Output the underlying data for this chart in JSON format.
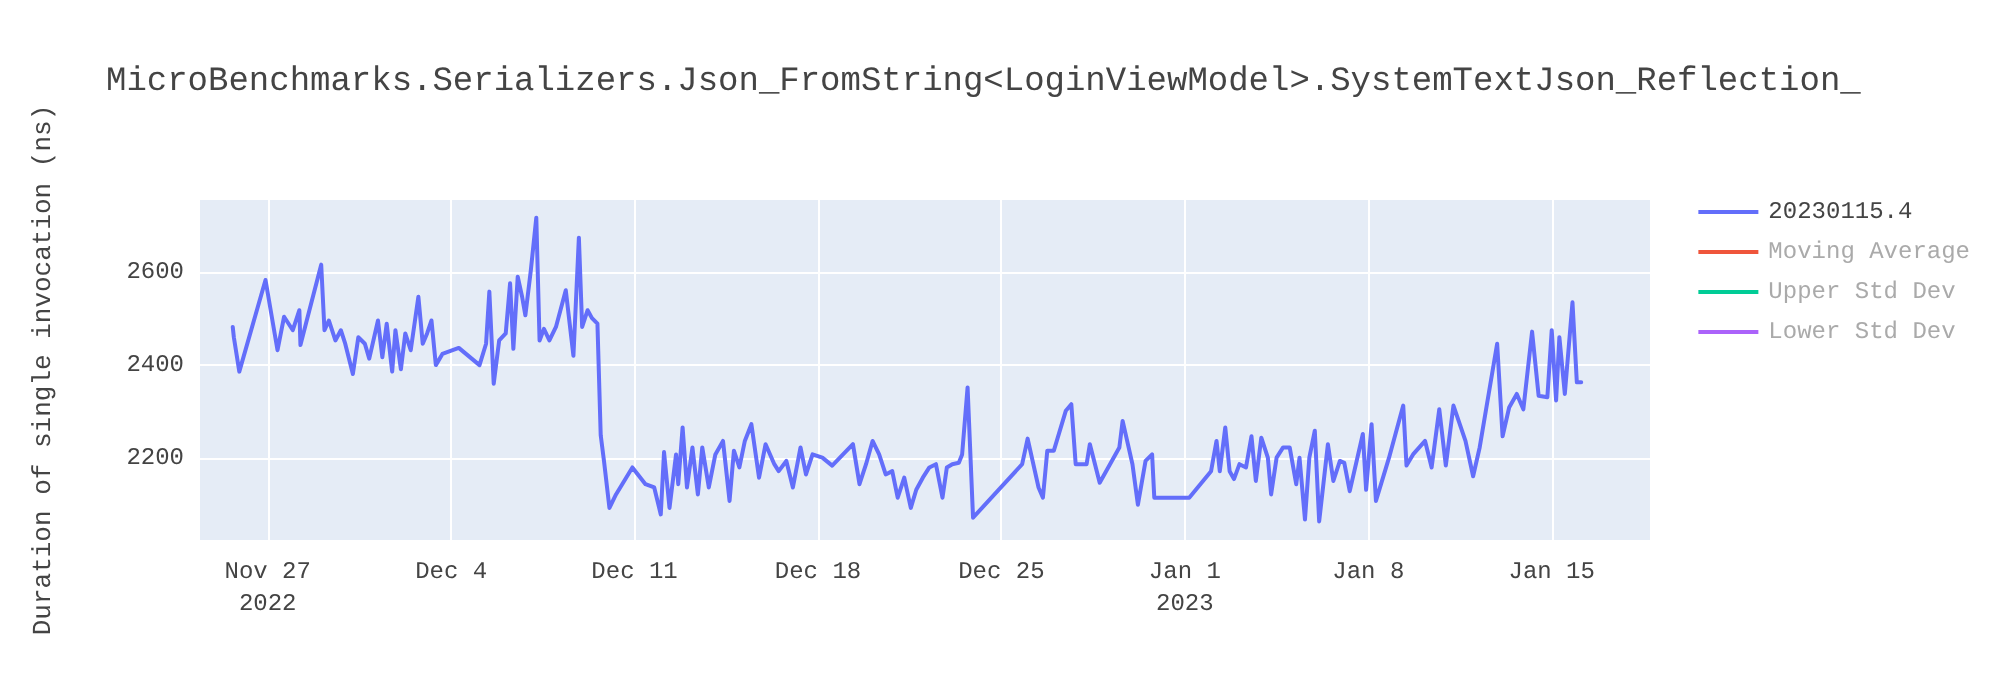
{
  "chart_data": {
    "type": "line",
    "title": "MicroBenchmarks.Serializers.Json_FromString<LoginViewModel>.SystemTextJson_Reflection_",
    "ylabel": "Duration of single invocation (ns)",
    "xlim": [
      "2022-11-24T10:00",
      "2023-01-18T18:00"
    ],
    "xticks": [
      {
        "value": "2022-11-27",
        "label": "Nov 27\n2022"
      },
      {
        "value": "2022-12-04",
        "label": "Dec 4"
      },
      {
        "value": "2022-12-11",
        "label": "Dec 11"
      },
      {
        "value": "2022-12-18",
        "label": "Dec 18"
      },
      {
        "value": "2022-12-25",
        "label": "Dec 25"
      },
      {
        "value": "2023-01-01",
        "label": "Jan 1\n2023"
      },
      {
        "value": "2023-01-08",
        "label": "Jan 8"
      },
      {
        "value": "2023-01-15",
        "label": "Jan 15"
      }
    ],
    "ylim": [
      2024,
      2755
    ],
    "yticks": [
      2200,
      2400,
      2600
    ],
    "grid": true,
    "legend": "right",
    "marker": "none",
    "series": [
      {
        "name": "20230115.4",
        "color": "#636efa",
        "x": [
          "2022-11-25T16:00",
          "2022-11-25T17:00",
          "2022-11-25T22:00",
          "2022-11-26T22:00",
          "2022-11-27T09:00",
          "2022-11-27T15:00",
          "2022-11-27T23:00",
          "2022-11-28T05:00",
          "2022-11-28T06:00",
          "2022-11-28T11:00",
          "2022-11-29T01:00",
          "2022-11-29T04:00",
          "2022-11-29T08:00",
          "2022-11-29T14:00",
          "2022-11-29T19:00",
          "2022-11-29T23:00",
          "2022-11-30T06:00",
          "2022-11-30T11:00",
          "2022-11-30T17:00",
          "2022-11-30T21:00",
          "2022-12-01T05:00",
          "2022-12-01T09:00",
          "2022-12-01T13:00",
          "2022-12-01T18:00",
          "2022-12-01T21:00",
          "2022-12-02T02:00",
          "2022-12-02T06:00",
          "2022-12-02T11:00",
          "2022-12-02T18:00",
          "2022-12-02T22:00",
          "2022-12-03T02:00",
          "2022-12-03T06:00",
          "2022-12-03T10:00",
          "2022-12-03T16:00",
          "2022-12-04T07:00",
          "2022-12-05T02:00",
          "2022-12-05T08:00",
          "2022-12-05T11:00",
          "2022-12-05T15:00",
          "2022-12-05T20:00",
          "2022-12-06T02:00",
          "2022-12-06T06:00",
          "2022-12-06T09:00",
          "2022-12-06T13:00",
          "2022-12-06T17:00",
          "2022-12-06T20:00",
          "2022-12-07T01:00",
          "2022-12-07T06:00",
          "2022-12-07T09:00",
          "2022-12-07T13:00",
          "2022-12-07T18:00",
          "2022-12-08T00:00",
          "2022-12-08T09:00",
          "2022-12-08T16:00",
          "2022-12-08T21:00",
          "2022-12-09T00:00",
          "2022-12-09T05:00",
          "2022-12-09T09:00",
          "2022-12-09T14:00",
          "2022-12-09T17:00",
          "2022-12-09T20:00",
          "2022-12-10T01:00",
          "2022-12-10T07:00",
          "2022-12-10T22:00",
          "2022-12-11T10:00",
          "2022-12-11T18:00",
          "2022-12-12T00:00",
          "2022-12-12T03:00",
          "2022-12-12T08:00",
          "2022-12-12T14:00",
          "2022-12-12T16:00",
          "2022-12-12T20:00",
          "2022-12-13T00:00",
          "2022-12-13T05:00",
          "2022-12-13T10:00",
          "2022-12-13T14:00",
          "2022-12-13T20:00",
          "2022-12-14T02:00",
          "2022-12-14T09:00",
          "2022-12-14T15:00",
          "2022-12-14T19:00",
          "2022-12-15T00:00",
          "2022-12-15T05:00",
          "2022-12-15T11:00",
          "2022-12-15T18:00",
          "2022-12-16T00:00",
          "2022-12-16T08:00",
          "2022-12-16T12:00",
          "2022-12-16T19:00",
          "2022-12-17T01:00",
          "2022-12-17T08:00",
          "2022-12-17T13:00",
          "2022-12-17T19:00",
          "2022-12-18T04:00",
          "2022-12-18T13:00",
          "2022-12-19T08:00",
          "2022-12-19T14:00",
          "2022-12-19T20:00",
          "2022-12-20T02:00",
          "2022-12-20T08:00",
          "2022-12-20T14:00",
          "2022-12-20T20:00",
          "2022-12-21T01:00",
          "2022-12-21T07:00",
          "2022-12-21T13:00",
          "2022-12-21T18:00",
          "2022-12-22T00:00",
          "2022-12-22T06:00",
          "2022-12-22T12:00",
          "2022-12-22T18:00",
          "2022-12-22T22:00",
          "2022-12-23T03:00",
          "2022-12-23T09:00",
          "2022-12-23T12:00",
          "2022-12-23T17:00",
          "2022-12-23T22:00",
          "2022-12-25T19:00",
          "2022-12-26T00:00",
          "2022-12-26T10:00",
          "2022-12-26T14:00",
          "2022-12-26T18:00",
          "2022-12-27T00:00",
          "2022-12-27T11:00",
          "2022-12-27T16:00",
          "2022-12-27T20:00",
          "2022-12-28T06:00",
          "2022-12-28T09:00",
          "2022-12-28T18:00",
          "2022-12-29T12:00",
          "2022-12-29T15:00",
          "2022-12-30T00:00",
          "2022-12-30T05:00",
          "2022-12-30T12:00",
          "2022-12-30T18:00",
          "2022-12-30T20:00",
          "2023-01-01T04:00",
          "2023-01-02T00:00",
          "2023-01-02T05:00",
          "2023-01-02T08:00",
          "2023-01-02T13:00",
          "2023-01-02T17:00",
          "2023-01-02T21:00",
          "2023-01-03T02:00",
          "2023-01-03T08:00",
          "2023-01-03T13:00",
          "2023-01-03T17:00",
          "2023-01-03T22:00",
          "2023-01-04T04:00",
          "2023-01-04T07:00",
          "2023-01-04T12:00",
          "2023-01-04T18:00",
          "2023-01-05T00:00",
          "2023-01-05T06:00",
          "2023-01-05T09:00",
          "2023-01-05T14:00",
          "2023-01-05T18:00",
          "2023-01-05T23:00",
          "2023-01-06T03:00",
          "2023-01-06T11:00",
          "2023-01-06T16:00",
          "2023-01-06T22:00",
          "2023-01-07T02:00",
          "2023-01-07T07:00",
          "2023-01-07T19:00",
          "2023-01-07T22:00",
          "2023-01-08T03:00",
          "2023-01-08T07:00",
          "2023-01-08T19:00",
          "2023-01-09T08:00",
          "2023-01-09T11:00",
          "2023-01-09T17:00",
          "2023-01-10T04:00",
          "2023-01-10T10:00",
          "2023-01-10T17:00",
          "2023-01-10T23:00",
          "2023-01-11T06:00",
          "2023-01-11T17:00",
          "2023-01-12T00:00",
          "2023-01-12T06:00",
          "2023-01-12T22:00",
          "2023-01-13T03:00",
          "2023-01-13T09:00",
          "2023-01-13T16:00",
          "2023-01-13T22:00",
          "2023-01-14T06:00",
          "2023-01-14T12:00",
          "2023-01-14T20:00",
          "2023-01-15T00:00",
          "2023-01-15T04:00",
          "2023-01-15T07:00",
          "2023-01-15T12:00",
          "2023-01-15T19:00",
          "2023-01-15T23:00",
          "2023-01-16T03:00"
        ],
        "values": [
          2482,
          2460,
          2386,
          2583,
          2432,
          2504,
          2475,
          2518,
          2443,
          2489,
          2616,
          2475,
          2496,
          2453,
          2475,
          2446,
          2381,
          2460,
          2446,
          2414,
          2496,
          2417,
          2489,
          2386,
          2475,
          2391,
          2468,
          2432,
          2547,
          2446,
          2468,
          2496,
          2400,
          2424,
          2437,
          2400,
          2446,
          2558,
          2360,
          2453,
          2468,
          2576,
          2435,
          2590,
          2547,
          2507,
          2604,
          2717,
          2453,
          2478,
          2453,
          2482,
          2561,
          2420,
          2674,
          2482,
          2518,
          2501,
          2489,
          2249,
          2194,
          2093,
          2122,
          2180,
          2144,
          2137,
          2079,
          2213,
          2093,
          2208,
          2144,
          2266,
          2137,
          2223,
          2122,
          2223,
          2137,
          2208,
          2237,
          2108,
          2216,
          2180,
          2237,
          2273,
          2158,
          2230,
          2187,
          2172,
          2194,
          2137,
          2223,
          2165,
          2208,
          2201,
          2184,
          2230,
          2144,
          2187,
          2237,
          2208,
          2165,
          2172,
          2115,
          2158,
          2093,
          2132,
          2158,
          2180,
          2187,
          2115,
          2180,
          2187,
          2190,
          2208,
          2352,
          2072,
          2187,
          2242,
          2137,
          2115,
          2216,
          2216,
          2302,
          2316,
          2187,
          2187,
          2230,
          2147,
          2223,
          2280,
          2187,
          2100,
          2194,
          2208,
          2115,
          2115,
          2172,
          2237,
          2172,
          2266,
          2172,
          2155,
          2187,
          2180,
          2247,
          2151,
          2244,
          2201,
          2122,
          2201,
          2223,
          2223,
          2144,
          2201,
          2068,
          2201,
          2259,
          2064,
          2230,
          2151,
          2194,
          2190,
          2129,
          2252,
          2132,
          2273,
          2108,
          2201,
          2313,
          2184,
          2208,
          2237,
          2180,
          2305,
          2184,
          2313,
          2237,
          2161,
          2223,
          2446,
          2247,
          2309,
          2338,
          2305,
          2472,
          2334,
          2331,
          2475,
          2324,
          2460,
          2338,
          2535,
          2363,
          2363
        ]
      },
      {
        "name": "Moving Average",
        "color": "#ef553b"
      },
      {
        "name": "Upper Std Dev",
        "color": "#00cc96"
      },
      {
        "name": "Lower Std Dev",
        "color": "#ab63fa"
      }
    ]
  }
}
